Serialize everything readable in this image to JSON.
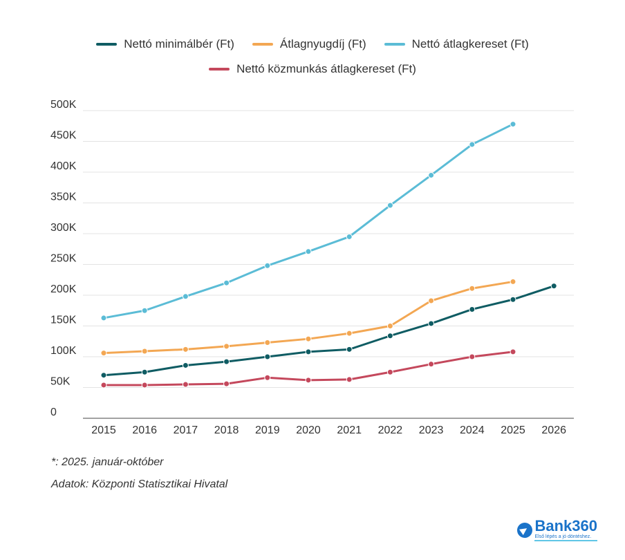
{
  "chart_data": {
    "type": "line",
    "categories": [
      "2015",
      "2016",
      "2017",
      "2018",
      "2019",
      "2020",
      "2021",
      "2022",
      "2023",
      "2024",
      "2025",
      "2026"
    ],
    "ylim": [
      0,
      500000
    ],
    "yticks": [
      0,
      50000,
      100000,
      150000,
      200000,
      250000,
      300000,
      350000,
      400000,
      450000,
      500000
    ],
    "ytick_labels": [
      "0",
      "50K",
      "100K",
      "150K",
      "200K",
      "250K",
      "300K",
      "350K",
      "400K",
      "450K",
      "500K"
    ],
    "series": [
      {
        "name": "Nettó minimálbér (Ft)",
        "color": "#0f5c63",
        "values": [
          70000,
          75000,
          86000,
          92000,
          100000,
          108000,
          112000,
          134000,
          154000,
          177000,
          193000,
          215000
        ]
      },
      {
        "name": "Átlagnyugdíj (Ft)",
        "color": "#f3a753",
        "values": [
          106000,
          109000,
          112000,
          117000,
          123000,
          129000,
          138000,
          150000,
          191000,
          211000,
          222000,
          null
        ]
      },
      {
        "name": "Nettó átlagkereset (Ft)",
        "color": "#5bbcd6",
        "values": [
          163000,
          175000,
          198000,
          220000,
          248000,
          271000,
          295000,
          346000,
          395000,
          445000,
          478000,
          null
        ]
      },
      {
        "name": "Nettó közmunkás átlagkereset (Ft)",
        "color": "#c4485c",
        "values": [
          54000,
          54000,
          55000,
          56000,
          66000,
          62000,
          63000,
          75000,
          88000,
          100000,
          108000,
          null
        ]
      }
    ]
  },
  "notes": {
    "footnote": "*: 2025. január-október",
    "source": "Adatok: Központi Statisztikai Hivatal"
  },
  "logo": {
    "name": "Bank360",
    "tagline": "Első lépés a jó döntéshez."
  }
}
